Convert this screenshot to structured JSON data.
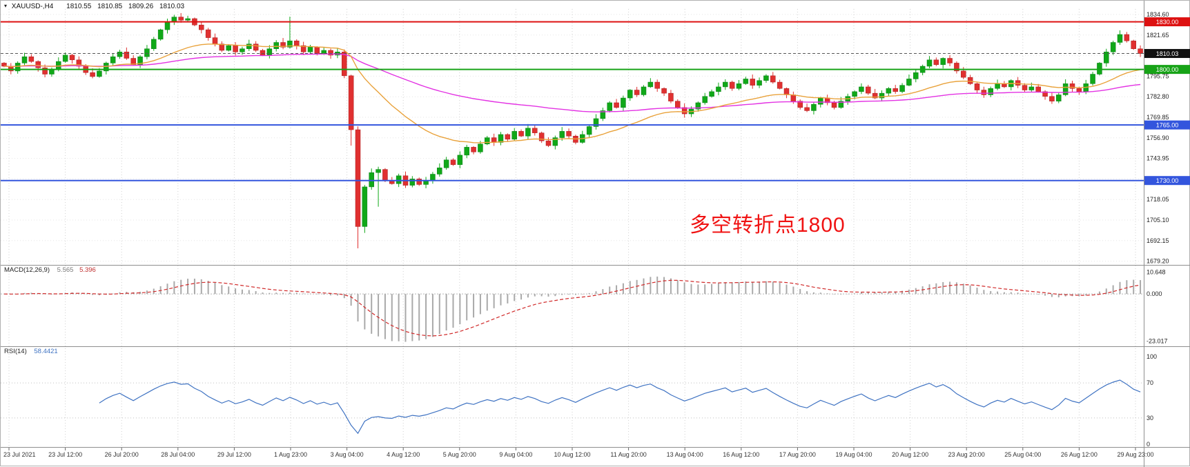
{
  "icons": {
    "chart_menu": "▾"
  },
  "window": {
    "title": "XAUUSD-,H4",
    "ohlc": {
      "open": "1810.55",
      "high": "1810.85",
      "low": "1809.26",
      "close": "1810.03"
    }
  },
  "chart_data": {
    "type": "candlestick",
    "symbol": "XAUUSD-",
    "timeframe": "H4",
    "price_axis_labels": [
      1834.6,
      1821.65,
      1795.75,
      1782.8,
      1769.85,
      1756.9,
      1743.95,
      1718.05,
      1705.1,
      1692.15,
      1679.2
    ],
    "hlines": [
      {
        "value": 1830.0,
        "label": "1830.00",
        "color": "#dd1111",
        "name": "resistance-line-1830"
      },
      {
        "value": 1800.0,
        "label": "1800.00",
        "color": "#17a317",
        "name": "pivot-line-1800"
      },
      {
        "value": 1765.0,
        "label": "1765.00",
        "color": "#3355dd",
        "name": "support-line-1765"
      },
      {
        "value": 1730.0,
        "label": "1730.00",
        "color": "#3355dd",
        "name": "support-line-1730"
      }
    ],
    "current_price": {
      "value": 1810.03,
      "label": "1810.03",
      "badge_color": "#111111"
    },
    "candles": {
      "first_open": 1804.0,
      "up_color": "#10a818",
      "down_color": "#e03030",
      "closes": [
        1802,
        1799,
        1804,
        1808,
        1805,
        1801,
        1797,
        1800,
        1805,
        1809,
        1806,
        1802,
        1798,
        1795.5,
        1799,
        1804,
        1808,
        1811,
        1807,
        1803,
        1808,
        1813,
        1819,
        1825,
        1830,
        1833,
        1831,
        1832,
        1828,
        1825,
        1820,
        1816,
        1812,
        1815,
        1811,
        1813,
        1816,
        1812,
        1809,
        1813,
        1817,
        1814,
        1818,
        1815,
        1811,
        1814,
        1810,
        1812,
        1809,
        1811,
        1796,
        1762,
        1701,
        1726,
        1735,
        1737,
        1730,
        1728,
        1733,
        1727,
        1731,
        1727.5,
        1730,
        1734,
        1738,
        1743,
        1740,
        1746,
        1751,
        1748,
        1753,
        1757,
        1754,
        1759,
        1756,
        1761,
        1758,
        1763,
        1760,
        1755,
        1752,
        1757,
        1761,
        1758,
        1754,
        1759,
        1764,
        1769,
        1774,
        1779,
        1776,
        1782,
        1787,
        1784,
        1789,
        1792,
        1788,
        1785,
        1780,
        1776,
        1772,
        1775,
        1779,
        1783,
        1786,
        1789,
        1792,
        1788,
        1791,
        1794,
        1790,
        1793,
        1796,
        1792,
        1788,
        1784,
        1780,
        1776,
        1774,
        1778,
        1782,
        1779,
        1776,
        1780,
        1783,
        1786,
        1789,
        1785,
        1782,
        1785,
        1788,
        1786,
        1790,
        1794,
        1798,
        1802,
        1806,
        1803,
        1807,
        1804,
        1799,
        1795,
        1791,
        1787,
        1784,
        1788,
        1791,
        1789,
        1793,
        1790,
        1787,
        1789,
        1786,
        1783,
        1780,
        1784,
        1791,
        1788,
        1786,
        1791,
        1797,
        1804,
        1811,
        1817,
        1822,
        1818,
        1813,
        1810
      ],
      "overrides": [
        {
          "i": 25,
          "h": 1834.4
        },
        {
          "i": 27,
          "h": 1833.8
        },
        {
          "i": 42,
          "h": 1833.2
        },
        {
          "i": 51,
          "l": 1752.0
        },
        {
          "i": 52,
          "l": 1687.3
        },
        {
          "i": 53,
          "l": 1697.0
        },
        {
          "i": 55,
          "l": 1713.5
        },
        {
          "i": 164,
          "h": 1824.6
        }
      ]
    },
    "moving_averages": [
      {
        "name": "ma-fast",
        "color": "#e9a23b"
      },
      {
        "name": "ma-slow",
        "color": "#e332e3"
      }
    ],
    "annotation": {
      "text": "多空转折点1800",
      "color": "#f01212"
    },
    "indicators": {
      "macd": {
        "header": "MACD(12,26,9)",
        "value_main": "5.565",
        "value_signal": "5.396",
        "axis_labels": [
          10.648,
          0.0,
          -23.017
        ],
        "hist_color": "#a9a9a9",
        "signal_color": "#d02828"
      },
      "rsi": {
        "header": "RSI(14)",
        "value": "58.4421",
        "axis_labels": [
          100,
          70,
          30,
          0
        ],
        "levels": [
          70,
          30
        ],
        "color": "#3e72c2"
      }
    },
    "time_axis_labels": [
      "23 Jul 2021",
      "23 Jul 12:00",
      "26 Jul 20:00",
      "28 Jul 04:00",
      "29 Jul 12:00",
      "1 Aug 23:00",
      "3 Aug 04:00",
      "4 Aug 12:00",
      "5 Aug 20:00",
      "9 Aug 04:00",
      "10 Aug 12:00",
      "11 Aug 20:00",
      "13 Aug 04:00",
      "16 Aug 12:00",
      "17 Aug 20:00",
      "19 Aug 04:00",
      "20 Aug 12:00",
      "23 Aug 20:00",
      "25 Aug 04:00",
      "26 Aug 12:00",
      "29 Aug 23:00"
    ]
  }
}
